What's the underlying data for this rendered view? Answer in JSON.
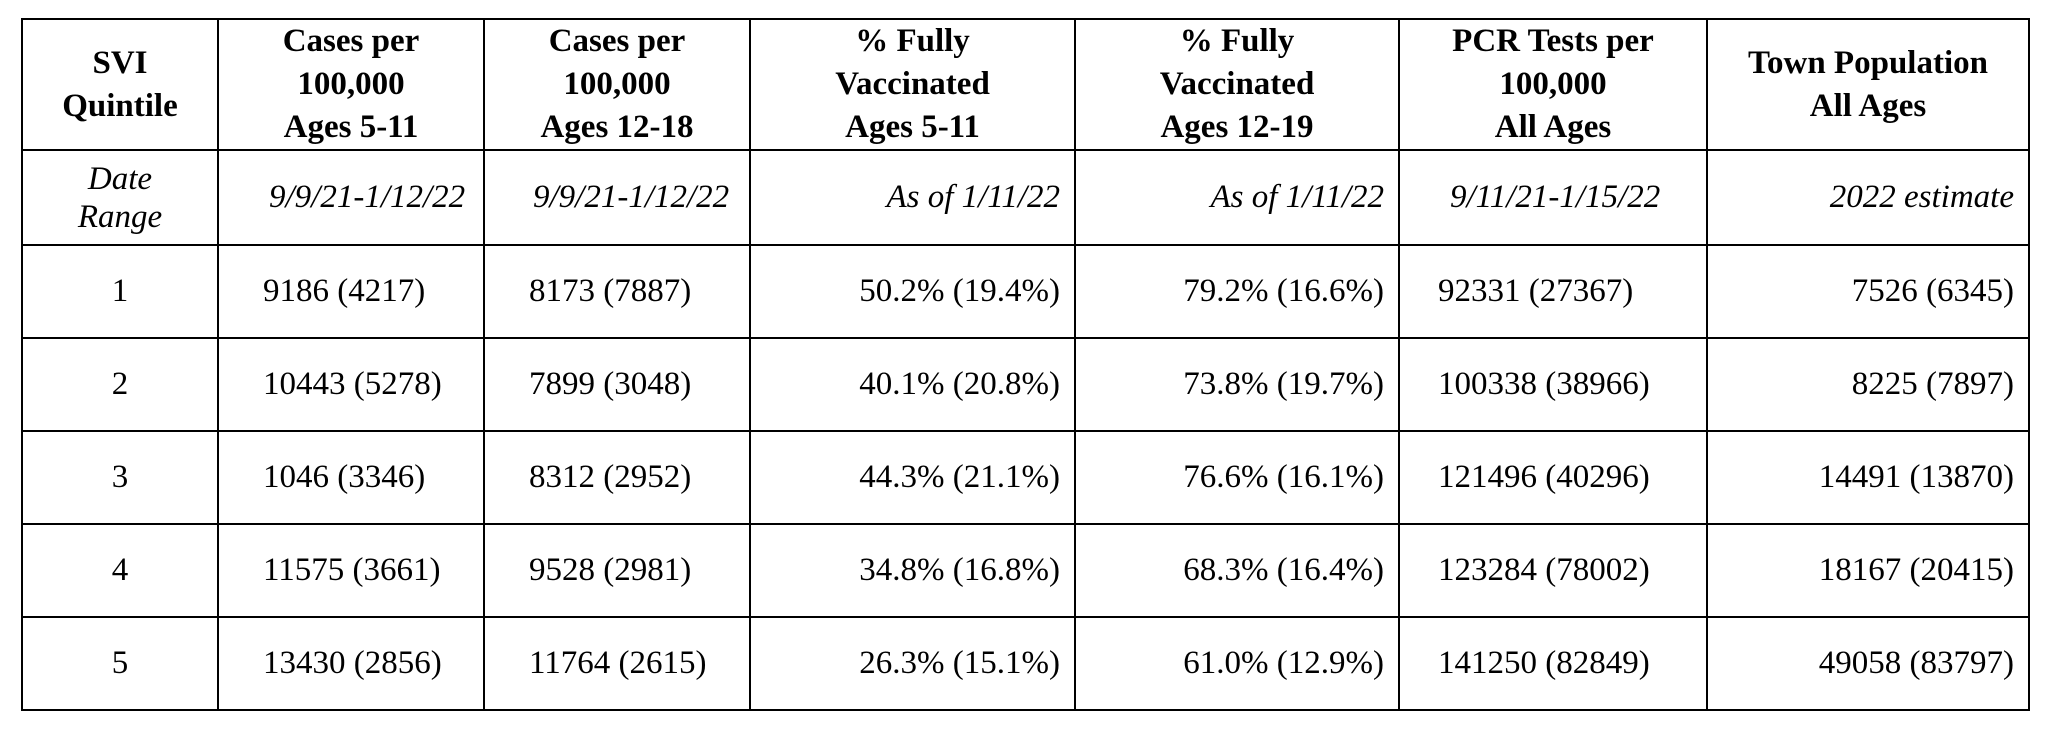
{
  "table": {
    "headers": [
      [
        "SVI",
        "Quintile"
      ],
      [
        "Cases per",
        "100,000",
        "Ages 5-11"
      ],
      [
        "Cases per",
        "100,000",
        "Ages 12-18"
      ],
      [
        "% Fully",
        "Vaccinated",
        "Ages 5-11"
      ],
      [
        "% Fully",
        "Vaccinated",
        "Ages 12-19"
      ],
      [
        "PCR Tests per",
        "100,000",
        "All Ages"
      ],
      [
        "Town Population",
        "All Ages"
      ]
    ],
    "date_row": {
      "label": [
        "Date",
        "Range"
      ],
      "values": [
        "9/9/21-1/12/22",
        "9/9/21-1/12/22",
        "As of 1/11/22",
        "As of 1/11/22",
        "9/11/21-1/15/22",
        "2022 estimate"
      ]
    },
    "rows": [
      [
        "1",
        "9186 (4217)",
        "8173 (7887)",
        "50.2% (19.4%)",
        "79.2% (16.6%)",
        "92331 (27367)",
        "7526 (6345)"
      ],
      [
        "2",
        "10443 (5278)",
        "7899 (3048)",
        "40.1% (20.8%)",
        "73.8% (19.7%)",
        "100338 (38966)",
        "8225 (7897)"
      ],
      [
        "3",
        "1046 (3346)",
        "8312 (2952)",
        "44.3% (21.1%)",
        "76.6% (16.1%)",
        "121496 (40296)",
        "14491 (13870)"
      ],
      [
        "4",
        "11575 (3661)",
        "9528 (2981)",
        "34.8% (16.8%)",
        "68.3% (16.4%)",
        "123284 (78002)",
        "18167 (20415)"
      ],
      [
        "5",
        "13430 (2856)",
        "11764 (2615)",
        "26.3% (15.1%)",
        "61.0% (12.9%)",
        "141250 (82849)",
        "49058 (83797)"
      ]
    ]
  }
}
